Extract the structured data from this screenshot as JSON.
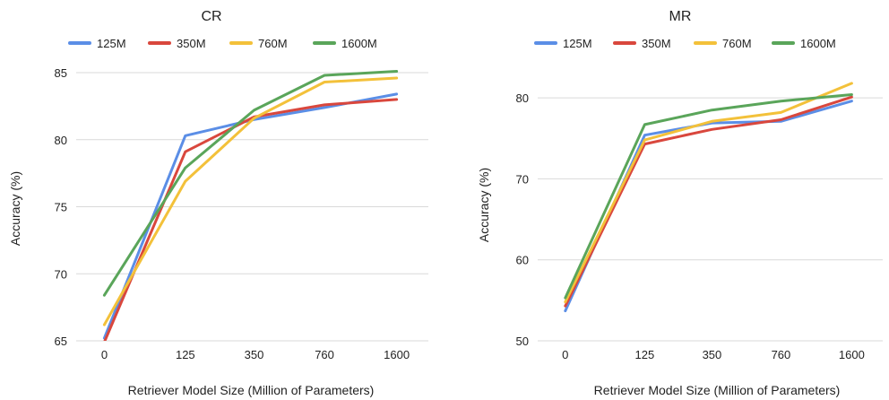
{
  "chart_data": [
    {
      "type": "line",
      "title": "CR",
      "xlabel": "Retriever Model Size (Million of Parameters)",
      "ylabel": "Accuracy (%)",
      "categories": [
        "0",
        "125",
        "350",
        "760",
        "1600"
      ],
      "ylim": [
        65,
        85
      ],
      "yticks": [
        65,
        70,
        75,
        80,
        85
      ],
      "grid": true,
      "legend": "top",
      "series": [
        {
          "name": "125M",
          "color": "#5b8ee6",
          "values": [
            65.2,
            80.3,
            81.5,
            82.4,
            83.4
          ]
        },
        {
          "name": "350M",
          "color": "#d9473d",
          "values": [
            64.9,
            79.1,
            81.7,
            82.6,
            83.0
          ]
        },
        {
          "name": "760M",
          "color": "#f3c13a",
          "values": [
            66.2,
            76.9,
            81.6,
            84.3,
            84.6
          ]
        },
        {
          "name": "1600M",
          "color": "#5aa55a",
          "values": [
            68.4,
            77.9,
            82.2,
            84.8,
            85.1
          ]
        }
      ]
    },
    {
      "type": "line",
      "title": "MR",
      "xlabel": "Retriever Model Size (Million of Parameters)",
      "ylabel": "Accuracy (%)",
      "categories": [
        "0",
        "125",
        "350",
        "760",
        "1600"
      ],
      "ylim": [
        50,
        84
      ],
      "yticks": [
        50,
        60,
        70,
        80
      ],
      "grid": true,
      "legend": "top",
      "series": [
        {
          "name": "125M",
          "color": "#5b8ee6",
          "values": [
            53.7,
            75.4,
            76.9,
            77.1,
            79.6
          ]
        },
        {
          "name": "350M",
          "color": "#d9473d",
          "values": [
            54.3,
            74.3,
            76.1,
            77.3,
            80.1
          ]
        },
        {
          "name": "760M",
          "color": "#f3c13a",
          "values": [
            54.8,
            74.8,
            77.1,
            78.2,
            81.8
          ]
        },
        {
          "name": "1600M",
          "color": "#5aa55a",
          "values": [
            55.3,
            76.7,
            78.5,
            79.6,
            80.4
          ]
        }
      ]
    }
  ]
}
